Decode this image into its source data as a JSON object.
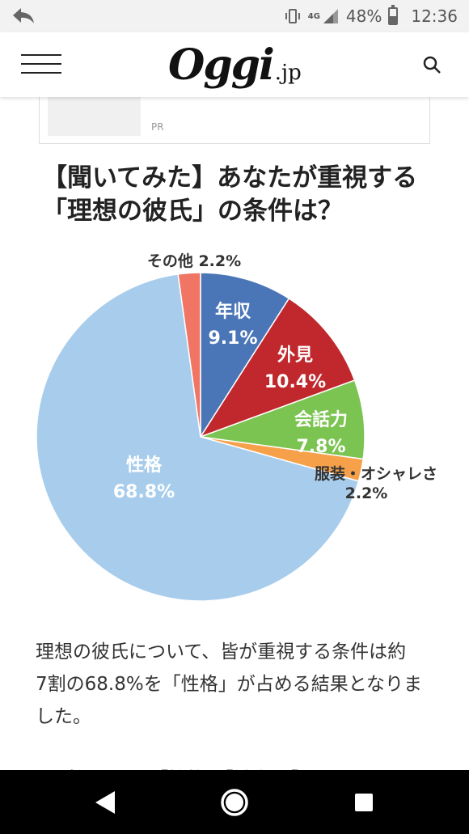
{
  "status_bar": {
    "network": "4G",
    "battery": "48%",
    "battery_level": 0.48,
    "time": "12:36"
  },
  "header": {
    "logo_main": "Oggi",
    "logo_sub": ".jp"
  },
  "ad": {
    "label": "PR"
  },
  "article": {
    "title_line1": "【聞いてみた】あなたが重視する",
    "title_line2": "「理想の彼氏」の条件は？",
    "body_line1": "理想の彼氏について、皆が重視する条件は約",
    "body_line2": "7割の68.8%を「性格」が占める結果となりま",
    "body_line3": "した。",
    "next_line_partial": "ポイントは「性格」「誠実」「やさしさ」"
  },
  "chart_data": {
    "type": "pie",
    "slices": [
      {
        "label": "年収",
        "value": 9.1,
        "value_label": "9.1%",
        "color": "#4a76b8",
        "text_color": "#ffffff"
      },
      {
        "label": "外見",
        "value": 10.4,
        "value_label": "10.4%",
        "color": "#c0282d",
        "text_color": "#ffffff"
      },
      {
        "label": "会話力",
        "value": 7.8,
        "value_label": "7.8%",
        "color": "#7cc452",
        "text_color": "#ffffff"
      },
      {
        "label": "服装・オシャレさ",
        "value": 2.2,
        "value_label": "2.2%",
        "color": "#f7a04a",
        "text_color": "#333333"
      },
      {
        "label": "性格",
        "value": 68.8,
        "value_label": "68.8%",
        "color": "#a8cdec",
        "text_color": "#ffffff"
      },
      {
        "label": "その他",
        "value": 2.2,
        "value_label": "2.2%",
        "color": "#f07565",
        "text_color": "#333333"
      }
    ]
  }
}
